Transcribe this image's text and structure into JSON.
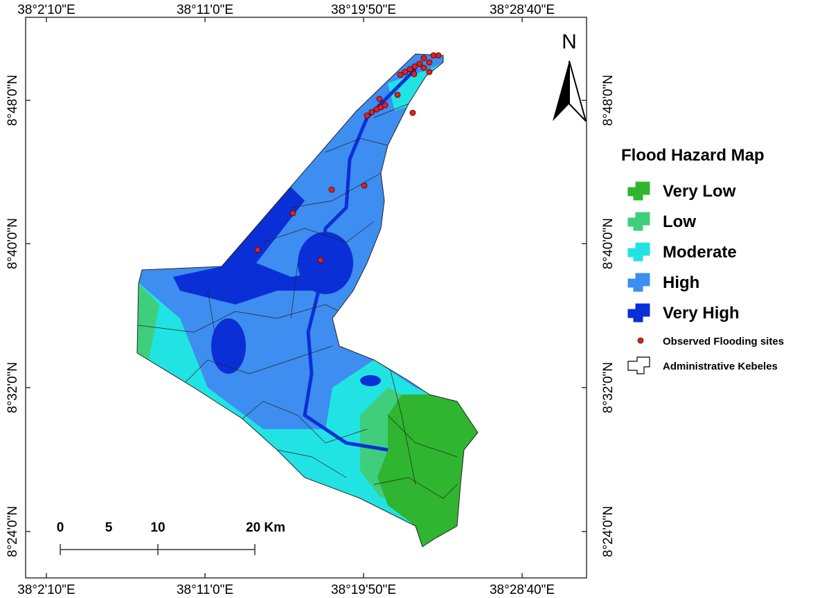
{
  "map": {
    "top_labels": [
      "38°2'10\"E",
      "38°11'0\"E",
      "38°19'50\"E",
      "38°28'40\"E"
    ],
    "bottom_labels": [
      "38°2'10\"E",
      "38°11'0\"E",
      "38°19'50\"E",
      "38°28'40\"E"
    ],
    "left_labels": [
      "8°48'0\"N",
      "8°40'0\"N",
      "8°32'0\"N",
      "8°24'0\"N"
    ],
    "right_labels": [
      "8°48'0\"N",
      "8°40'0\"N",
      "8°32'0\"N",
      "8°24'0\"N"
    ],
    "north": "N",
    "legend": {
      "title": "Flood Hazard Map",
      "items": [
        {
          "label": "Very Low",
          "color": "#2fb52f"
        },
        {
          "label": "Low",
          "color": "#3fcf7c"
        },
        {
          "label": "Moderate",
          "color": "#22e3e3"
        },
        {
          "label": "High",
          "color": "#3d8ef0"
        },
        {
          "label": "Very High",
          "color": "#0b2fd6"
        }
      ],
      "points_label": "Observed Flooding sites",
      "points_color": "#e02020",
      "kebeles_label": "Administrative Kebeles"
    },
    "scale_bar": {
      "labels": [
        "0",
        "5",
        "10",
        "20 Km"
      ]
    }
  }
}
